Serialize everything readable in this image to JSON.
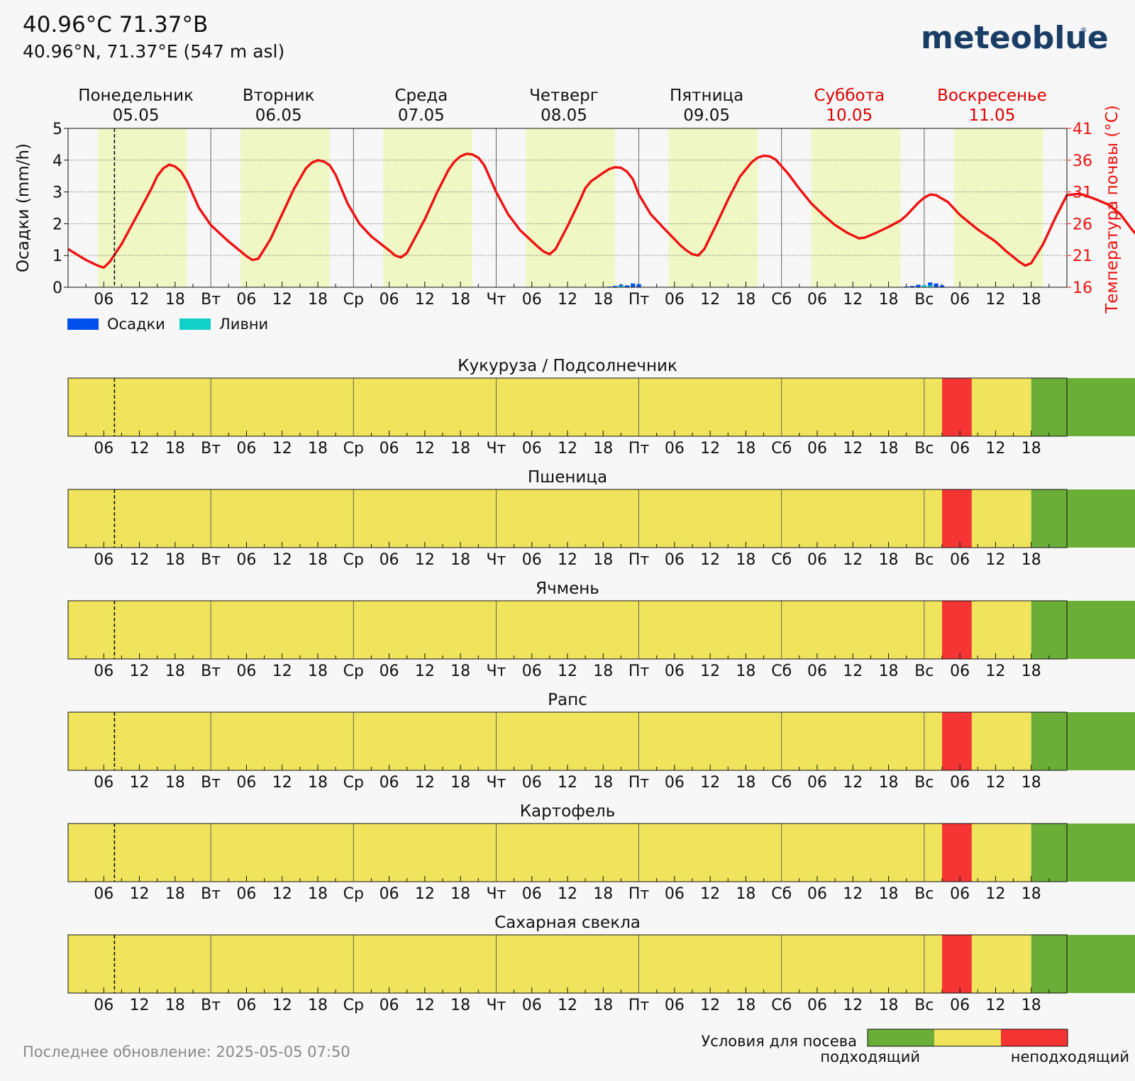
{
  "header": {
    "title": "40.96°C 71.37°В",
    "subtitle": "40.96°N, 71.37°E (547 m asl)",
    "brand": "meteoblue",
    "brand_mark": "®"
  },
  "days": [
    {
      "name": "Понедельник",
      "date": "05.05",
      "weekend": false
    },
    {
      "name": "Вторник",
      "date": "06.05",
      "weekend": false
    },
    {
      "name": "Среда",
      "date": "07.05",
      "weekend": false
    },
    {
      "name": "Четверг",
      "date": "08.05",
      "weekend": false
    },
    {
      "name": "Пятница",
      "date": "09.05",
      "weekend": false
    },
    {
      "name": "Суббота",
      "date": "10.05",
      "weekend": true
    },
    {
      "name": "Воскресенье",
      "date": "11.05",
      "weekend": true
    }
  ],
  "day_abbr": [
    "",
    "Вт",
    "Ср",
    "Чт",
    "Пт",
    "Сб",
    "Вс"
  ],
  "hour_labels": [
    "06",
    "12",
    "18"
  ],
  "colors": {
    "temperature": "#ee1111",
    "precip": "#0050ee",
    "showers": "#10d0c8",
    "daylight": "#eff7c4",
    "suitable": "#6aae38",
    "marginal": "#f0e45c",
    "unsuitable": "#f53434",
    "weekend_text": "#dd0000",
    "brand": "#1a3d66"
  },
  "chart_data": [
    {
      "type": "line",
      "ylabel": "Осадки (mm/h)",
      "y2label": "Температура почвы (°C)",
      "ylim": [
        0,
        5
      ],
      "y2lim": [
        16,
        41
      ],
      "yticks": [
        0,
        1,
        2,
        3,
        4,
        5
      ],
      "y2ticks": [
        16,
        21,
        26,
        31,
        36,
        41
      ],
      "x_unit": "hours since 2025-05-05 00:00",
      "now_hour": 7.8,
      "daylight_hours": [
        5,
        20
      ],
      "legend": [
        {
          "name": "Осадки",
          "key": "precip"
        },
        {
          "name": "Ливни",
          "key": "showers"
        }
      ],
      "series": [
        {
          "name": "Температура почвы (°C)",
          "axis": "right",
          "points": [
            [
              0,
              22.0
            ],
            [
              3,
              20.3
            ],
            [
              5,
              19.4
            ],
            [
              6,
              19.1
            ],
            [
              7,
              20.0
            ],
            [
              9,
              22.8
            ],
            [
              12,
              28.0
            ],
            [
              14,
              31.5
            ],
            [
              15,
              33.5
            ],
            [
              16,
              34.7
            ],
            [
              17,
              35.3
            ],
            [
              18,
              35.0
            ],
            [
              19,
              34.2
            ],
            [
              20,
              32.7
            ],
            [
              22,
              28.5
            ],
            [
              24,
              25.8
            ],
            [
              27,
              23.2
            ],
            [
              30,
              20.9
            ],
            [
              31,
              20.3
            ],
            [
              32,
              20.5
            ],
            [
              34,
              23.5
            ],
            [
              36,
              27.5
            ],
            [
              38,
              31.5
            ],
            [
              40,
              34.7
            ],
            [
              41,
              35.6
            ],
            [
              42,
              36.0
            ],
            [
              43,
              35.8
            ],
            [
              44,
              35.2
            ],
            [
              45,
              33.7
            ],
            [
              47,
              29.2
            ],
            [
              49,
              26.0
            ],
            [
              51,
              24.0
            ],
            [
              54,
              21.8
            ],
            [
              55,
              21.0
            ],
            [
              56,
              20.7
            ],
            [
              57,
              21.4
            ],
            [
              60,
              26.7
            ],
            [
              62,
              30.8
            ],
            [
              64,
              34.5
            ],
            [
              65,
              35.8
            ],
            [
              66,
              36.6
            ],
            [
              67,
              37.0
            ],
            [
              68,
              36.9
            ],
            [
              69,
              36.4
            ],
            [
              70,
              35.2
            ],
            [
              72,
              31.0
            ],
            [
              74,
              27.5
            ],
            [
              76,
              25.0
            ],
            [
              79,
              22.4
            ],
            [
              80,
              21.6
            ],
            [
              81,
              21.2
            ],
            [
              82,
              22.0
            ],
            [
              84,
              25.6
            ],
            [
              86,
              29.5
            ],
            [
              87,
              31.6
            ],
            [
              88,
              32.7
            ],
            [
              90,
              34.0
            ],
            [
              91,
              34.6
            ],
            [
              92,
              34.9
            ],
            [
              93,
              34.8
            ],
            [
              94,
              34.2
            ],
            [
              95,
              33.0
            ],
            [
              96,
              30.6
            ],
            [
              98,
              27.5
            ],
            [
              100,
              25.5
            ],
            [
              103,
              22.6
            ],
            [
              104,
              21.8
            ],
            [
              105,
              21.2
            ],
            [
              106,
              21.0
            ],
            [
              107,
              22.0
            ],
            [
              109,
              25.8
            ],
            [
              111,
              29.8
            ],
            [
              113,
              33.4
            ],
            [
              115,
              35.7
            ],
            [
              116,
              36.4
            ],
            [
              117,
              36.7
            ],
            [
              118,
              36.6
            ],
            [
              119,
              36.1
            ],
            [
              121,
              34.0
            ],
            [
              123,
              31.5
            ],
            [
              125,
              29.2
            ],
            [
              127,
              27.4
            ],
            [
              129,
              25.8
            ],
            [
              131,
              24.6
            ],
            [
              133,
              23.7
            ],
            [
              134,
              23.8
            ],
            [
              136,
              24.6
            ],
            [
              138,
              25.5
            ],
            [
              140,
              26.5
            ],
            [
              141,
              27.3
            ],
            [
              142,
              28.3
            ],
            [
              143,
              29.3
            ],
            [
              144,
              30.1
            ],
            [
              145,
              30.6
            ],
            [
              146,
              30.5
            ],
            [
              148,
              29.4
            ],
            [
              150,
              27.4
            ],
            [
              153,
              25.1
            ],
            [
              156,
              23.2
            ],
            [
              158,
              21.5
            ],
            [
              160,
              20.0
            ],
            [
              161,
              19.4
            ],
            [
              162,
              19.8
            ],
            [
              164,
              22.8
            ],
            [
              166,
              26.8
            ],
            [
              168,
              30.5
            ],
            [
              169,
              30.6
            ],
            [
              170,
              30.7
            ],
            [
              171,
              30.5
            ],
            [
              173,
              29.8
            ],
            [
              175,
              29.0
            ],
            [
              177,
              27.5
            ],
            [
              179,
              25.0
            ],
            [
              181,
              23.0
            ],
            [
              183,
              21.5
            ]
          ]
        },
        {
          "name": "Осадки",
          "axis": "left",
          "kind": "bars",
          "points": [
            [
              90,
              0.01
            ],
            [
              91,
              0.02
            ],
            [
              92,
              0.04
            ],
            [
              93,
              0.08
            ],
            [
              94,
              0.06
            ],
            [
              95,
              0.12
            ],
            [
              96,
              0.1
            ],
            [
              140,
              0.01
            ],
            [
              141,
              0.02
            ],
            [
              142,
              0.04
            ],
            [
              143,
              0.08
            ],
            [
              144,
              0.07
            ],
            [
              145,
              0.15
            ],
            [
              146,
              0.12
            ],
            [
              147,
              0.06
            ]
          ]
        },
        {
          "name": "Ливни",
          "axis": "left",
          "kind": "bars",
          "points": [
            [
              93,
              0.04
            ],
            [
              144,
              0.07
            ],
            [
              145,
              0.06
            ]
          ]
        }
      ]
    },
    {
      "type": "heatmap",
      "title": "Кукуруза / Подсолнечник",
      "segments": [
        [
          0,
          147,
          "marginal"
        ],
        [
          147,
          152,
          "unsuitable"
        ],
        [
          152,
          162,
          "marginal"
        ],
        [
          162,
          183,
          "suitable"
        ]
      ]
    },
    {
      "type": "heatmap",
      "title": "Пшеница",
      "segments": [
        [
          0,
          147,
          "marginal"
        ],
        [
          147,
          152,
          "unsuitable"
        ],
        [
          152,
          162,
          "marginal"
        ],
        [
          162,
          183,
          "suitable"
        ]
      ]
    },
    {
      "type": "heatmap",
      "title": "Ячмень",
      "segments": [
        [
          0,
          147,
          "marginal"
        ],
        [
          147,
          152,
          "unsuitable"
        ],
        [
          152,
          162,
          "marginal"
        ],
        [
          162,
          183,
          "suitable"
        ]
      ]
    },
    {
      "type": "heatmap",
      "title": "Рапс",
      "segments": [
        [
          0,
          147,
          "marginal"
        ],
        [
          147,
          152,
          "unsuitable"
        ],
        [
          152,
          162,
          "marginal"
        ],
        [
          162,
          183,
          "suitable"
        ]
      ]
    },
    {
      "type": "heatmap",
      "title": "Картофель",
      "segments": [
        [
          0,
          147,
          "marginal"
        ],
        [
          147,
          152,
          "unsuitable"
        ],
        [
          152,
          162,
          "marginal"
        ],
        [
          162,
          183,
          "suitable"
        ]
      ]
    },
    {
      "type": "heatmap",
      "title": "Сахарная свекла",
      "segments": [
        [
          0,
          147,
          "marginal"
        ],
        [
          147,
          152,
          "unsuitable"
        ],
        [
          152,
          162,
          "marginal"
        ],
        [
          162,
          183,
          "suitable"
        ]
      ]
    }
  ],
  "footer": {
    "updated": "Последнее обновление: 2025-05-05 07:50",
    "scale_title": "Условия для посева",
    "scale_left": "подходящий",
    "scale_right": "неподходящий",
    "scale_colors": [
      "suitable",
      "marginal",
      "unsuitable"
    ]
  }
}
